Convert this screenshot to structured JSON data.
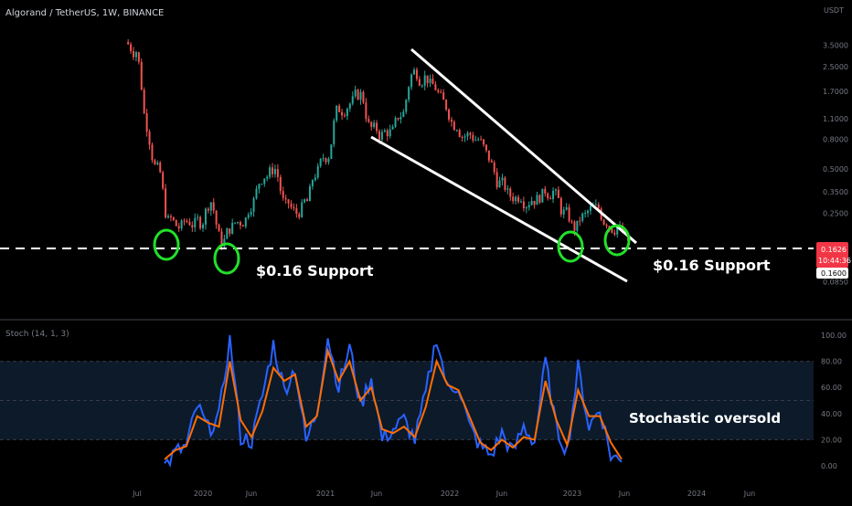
{
  "header": {
    "symbol_title": "Algorand / TetherUS, 1W, BINANCE"
  },
  "price_axis": {
    "unit": "USDT",
    "ticks": [
      "3.5000",
      "2.5000",
      "1.7000",
      "1.1000",
      "0.8000",
      "0.5000",
      "0.3500",
      "0.2500",
      "0.1626",
      "0.1600",
      "0.0850"
    ],
    "ticks_values": [
      3.5,
      2.5,
      1.7,
      1.1,
      0.8,
      0.5,
      0.35,
      0.25,
      0.1626,
      0.16,
      0.085
    ]
  },
  "price_badge": {
    "price": "0.1626",
    "countdown": "10:44:36",
    "support_level": "0.1600"
  },
  "annotations": {
    "support_left": "$0.16 Support",
    "support_right": "$0.16 Support",
    "stoch_note": "Stochastic oversold"
  },
  "stoch_panel": {
    "label": "Stoch (14, 1, 3)",
    "ticks": [
      "100.00",
      "80.00",
      "60.00",
      "40.00",
      "20.00",
      "0.00"
    ],
    "ticks_values": [
      100,
      80,
      60,
      40,
      20,
      0
    ],
    "upper_band": 80,
    "lower_band": 20
  },
  "time_axis": [
    "Jul",
    "2020",
    "Jun",
    "2021",
    "Jun",
    "2022",
    "Jun",
    "2023",
    "Jun",
    "2024",
    "Jun"
  ],
  "colors": {
    "background": "#000000",
    "up_candle": "#26a69a",
    "down_candle": "#ef5350",
    "k_line": "#2962ff",
    "d_line": "#ff6d00",
    "support_line": "#ffffff",
    "highlight_circle": "#22e02a",
    "stoch_band": "#0c1a2a",
    "price_badge_bg": "#f23645",
    "axis_text": "#787b86"
  },
  "chart_data": [
    {
      "type": "candlestick",
      "title": "Algorand / TetherUS, 1W, BINANCE",
      "y_scale": "log",
      "ylim": [
        0.07,
        4.5
      ],
      "x": [
        "2019-07",
        "2019-08",
        "2019-09",
        "2019-10",
        "2019-11",
        "2019-12",
        "2020-01",
        "2020-02",
        "2020-03",
        "2020-04",
        "2020-05",
        "2020-06",
        "2020-07",
        "2020-08",
        "2020-09",
        "2020-10",
        "2020-11",
        "2020-12",
        "2021-01",
        "2021-02",
        "2021-03",
        "2021-04",
        "2021-05",
        "2021-06",
        "2021-07",
        "2021-08",
        "2021-09",
        "2021-10",
        "2021-11",
        "2021-12",
        "2022-01",
        "2022-02",
        "2022-03",
        "2022-04",
        "2022-05",
        "2022-06",
        "2022-07",
        "2022-08",
        "2022-09",
        "2022-10",
        "2022-11",
        "2022-12",
        "2023-01",
        "2023-02",
        "2023-03",
        "2023-04",
        "2023-05"
      ],
      "close": [
        3.2,
        1.0,
        0.5,
        0.22,
        0.2,
        0.22,
        0.22,
        0.3,
        0.16,
        0.2,
        0.22,
        0.3,
        0.45,
        0.5,
        0.28,
        0.25,
        0.3,
        0.48,
        0.62,
        1.3,
        1.4,
        1.6,
        0.95,
        0.85,
        0.9,
        1.2,
        2.3,
        2.1,
        1.8,
        1.35,
        1.0,
        0.85,
        0.8,
        0.6,
        0.4,
        0.33,
        0.33,
        0.31,
        0.33,
        0.35,
        0.25,
        0.2,
        0.24,
        0.27,
        0.22,
        0.2,
        0.1626
      ],
      "support_level": 0.16,
      "annotations": [
        "$0.16 Support",
        "$0.16 Support"
      ]
    },
    {
      "type": "line",
      "title": "Stoch (14, 1, 3)",
      "ylim": [
        0,
        100
      ],
      "bands": [
        20,
        80
      ],
      "x": [
        "2019-11",
        "2019-12",
        "2020-01",
        "2020-02",
        "2020-03",
        "2020-04",
        "2020-05",
        "2020-06",
        "2020-07",
        "2020-08",
        "2020-09",
        "2020-10",
        "2020-11",
        "2020-12",
        "2021-01",
        "2021-02",
        "2021-03",
        "2021-04",
        "2021-05",
        "2021-06",
        "2021-07",
        "2021-08",
        "2021-09",
        "2021-10",
        "2021-11",
        "2021-12",
        "2022-01",
        "2022-02",
        "2022-03",
        "2022-04",
        "2022-05",
        "2022-06",
        "2022-07",
        "2022-08",
        "2022-09",
        "2022-10",
        "2022-11",
        "2022-12",
        "2023-01",
        "2023-02",
        "2023-03",
        "2023-04",
        "2023-05"
      ],
      "series": [
        {
          "values": [
            0,
            10,
            15,
            46,
            28,
            37,
            99,
            22,
            19,
            54,
            93,
            58,
            75,
            18,
            42,
            99,
            60,
            91,
            46,
            68,
            20,
            28,
            35,
            20,
            55,
            99,
            58,
            62,
            30,
            15,
            8,
            25,
            10,
            30,
            18,
            80,
            28,
            12,
            75,
            30,
            44,
            8,
            3
          ]
        },
        {
          "values": [
            5,
            12,
            15,
            38,
            33,
            30,
            80,
            35,
            22,
            42,
            75,
            65,
            70,
            30,
            38,
            88,
            65,
            80,
            50,
            60,
            28,
            25,
            30,
            22,
            45,
            80,
            62,
            58,
            38,
            18,
            12,
            20,
            14,
            22,
            20,
            65,
            35,
            16,
            58,
            38,
            38,
            18,
            5
          ]
        }
      ],
      "annotations": [
        "Stochastic oversold"
      ]
    }
  ]
}
